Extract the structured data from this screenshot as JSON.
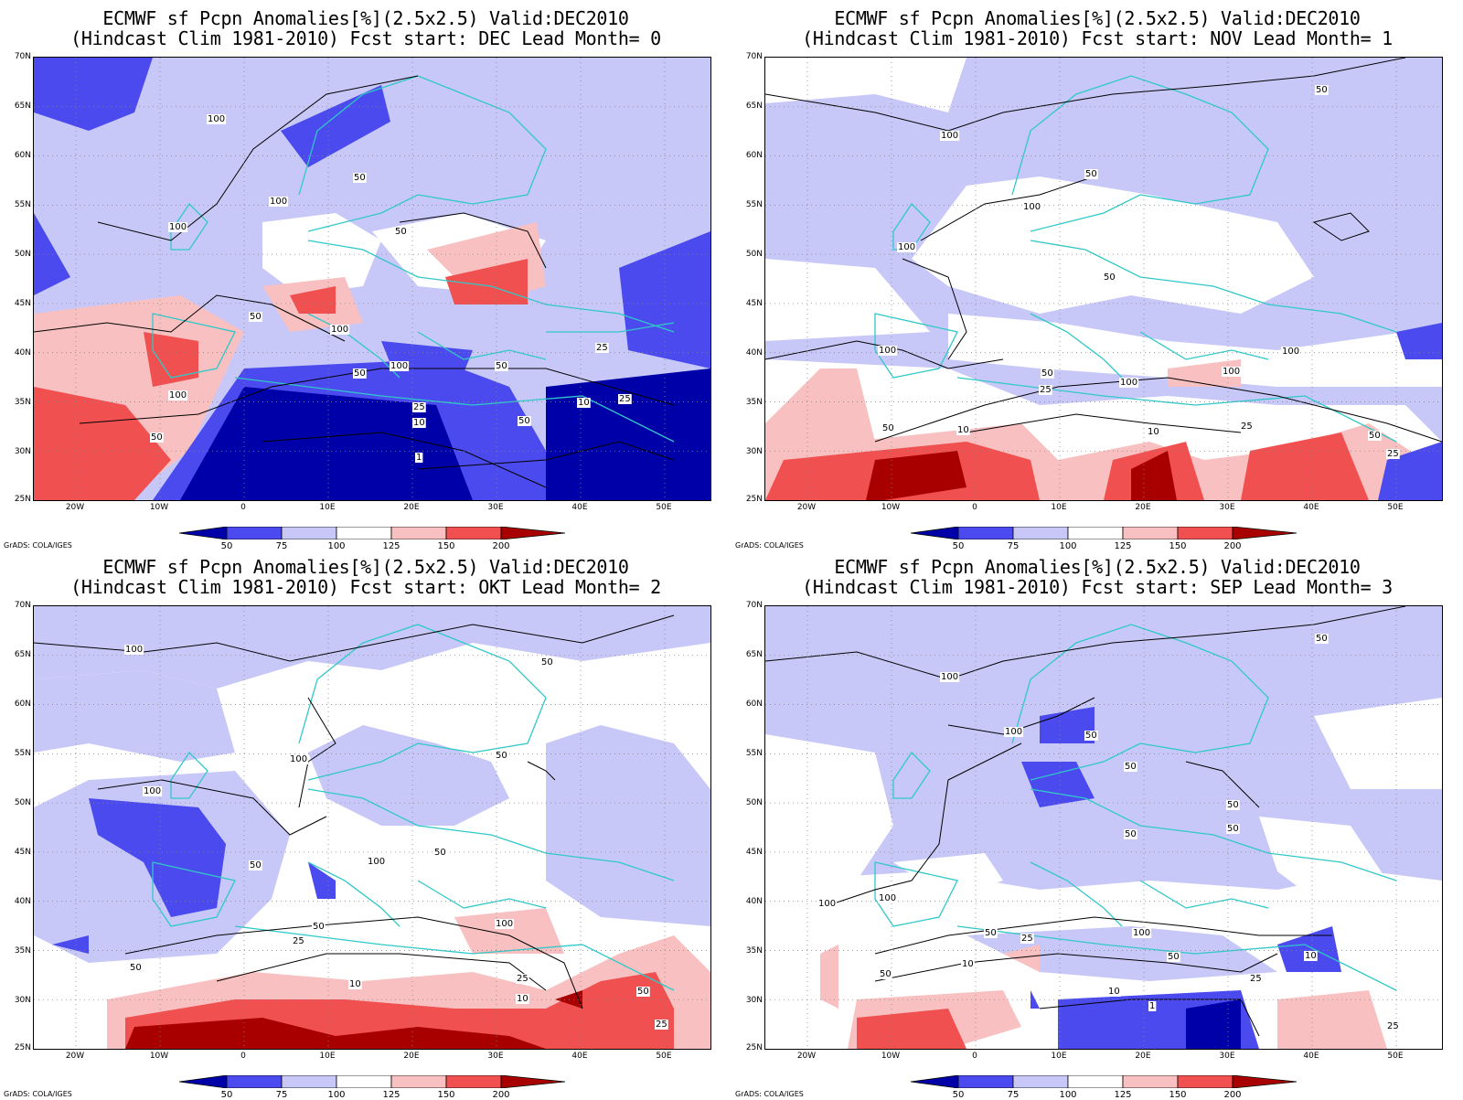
{
  "graphic_credit": "GrADS: COLA/IGES",
  "panels": [
    {
      "title_line1": "ECMWF sf Pcpn Anomalies[%](2.5x2.5) Valid:DEC2010",
      "title_line2": "(Hindcast Clim 1981-2010) Fcst start: DEC  Lead Month= 0"
    },
    {
      "title_line1": "ECMWF sf Pcpn Anomalies[%](2.5x2.5) Valid:DEC2010",
      "title_line2": "(Hindcast Clim 1981-2010) Fcst start: NOV  Lead Month= 1"
    },
    {
      "title_line1": "ECMWF sf Pcpn Anomalies[%](2.5x2.5) Valid:DEC2010",
      "title_line2": "(Hindcast Clim 1981-2010) Fcst start: OKT  Lead Month= 2"
    },
    {
      "title_line1": "ECMWF sf Pcpn Anomalies[%](2.5x2.5) Valid:DEC2010",
      "title_line2": "(Hindcast Clim 1981-2010) Fcst start: SEP  Lead Month= 3"
    }
  ],
  "axes": {
    "lat_labels": [
      "70N",
      "65N",
      "60N",
      "55N",
      "50N",
      "45N",
      "40N",
      "35N",
      "30N",
      "25N"
    ],
    "lon_labels": [
      "20W",
      "10W",
      "0",
      "10E",
      "20E",
      "30E",
      "40E",
      "50E"
    ]
  },
  "colorbar": {
    "levels": [
      "50",
      "75",
      "100",
      "125",
      "150",
      "200"
    ],
    "colors": [
      "#0000a8",
      "#4a4aee",
      "#c8c8f8",
      "#ffffff",
      "#f8c0c0",
      "#f05050",
      "#a80000"
    ]
  },
  "contour_labels": [
    "1",
    "10",
    "25",
    "50",
    "100"
  ],
  "coastline_color": "#30c8c8"
}
